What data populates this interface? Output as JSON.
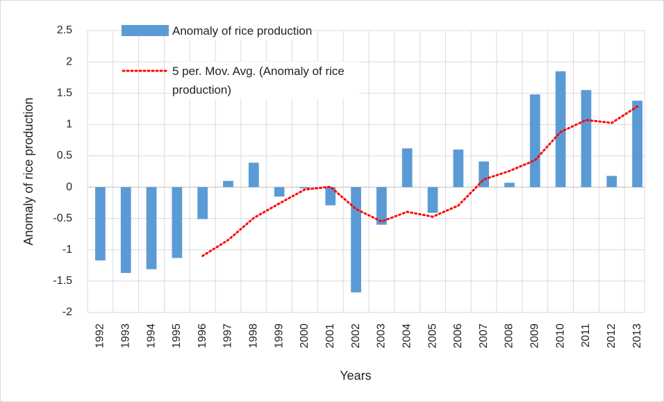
{
  "chart_data": {
    "type": "bar",
    "categories": [
      "1992",
      "1993",
      "1994",
      "1995",
      "1996",
      "1997",
      "1998",
      "1999",
      "2000",
      "2001",
      "2002",
      "2003",
      "2004",
      "2005",
      "2006",
      "2007",
      "2008",
      "2009",
      "2010",
      "2011",
      "2012",
      "2013"
    ],
    "series": [
      {
        "name": "Anomaly of rice production",
        "type": "bar",
        "color": "#5b9bd5",
        "values": [
          -1.17,
          -1.37,
          -1.31,
          -1.13,
          -0.51,
          0.1,
          0.39,
          -0.15,
          -0.02,
          -0.29,
          -1.68,
          -0.6,
          0.62,
          -0.41,
          0.6,
          0.41,
          0.07,
          1.48,
          1.85,
          1.55,
          0.18,
          1.38
        ]
      },
      {
        "name": "5 per. Mov. Avg. (Anomaly of rice production)",
        "type": "line",
        "color": "#ff0000",
        "dash": "dotted",
        "values": [
          null,
          null,
          null,
          null,
          -1.098,
          -0.844,
          -0.492,
          -0.26,
          -0.038,
          0.006,
          -0.35,
          -0.548,
          -0.394,
          -0.472,
          -0.294,
          0.124,
          0.258,
          0.43,
          0.882,
          1.072,
          1.026,
          1.288
        ]
      }
    ],
    "x_label": "Years",
    "y_label": "Anomaly of rice production",
    "ylim": [
      -2,
      2.5
    ],
    "yticks": [
      -2,
      -1.5,
      -1,
      -0.5,
      0,
      0.5,
      1,
      1.5,
      2,
      2.5
    ],
    "grid": true
  }
}
